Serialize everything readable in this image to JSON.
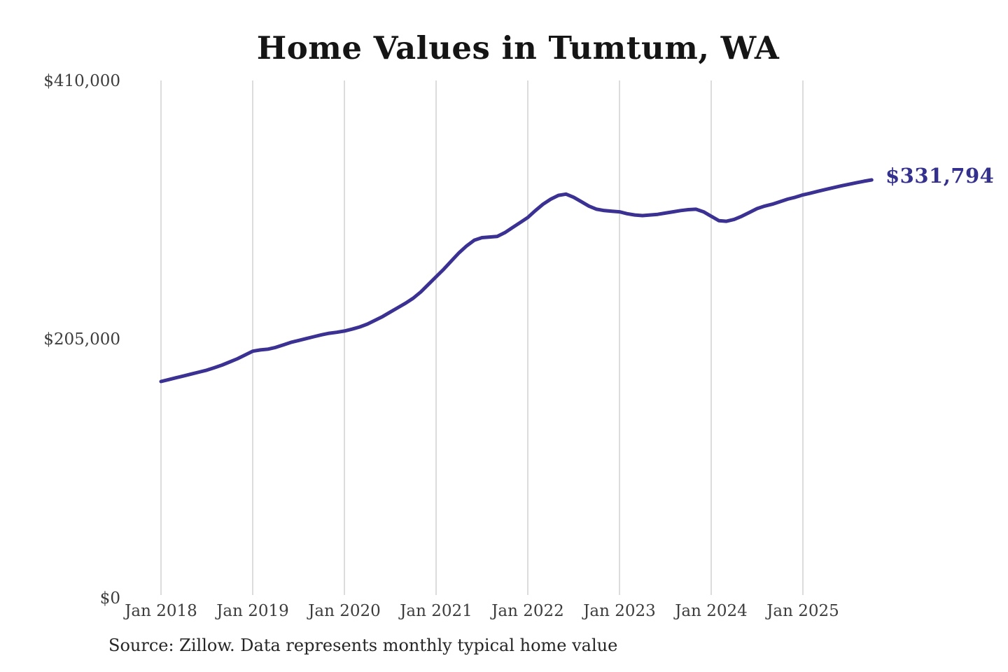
{
  "title": "Home Values in Tumtum, WA",
  "latest_value_label": "$331,794",
  "source_note": "Source: Zillow. Data represents monthly typical home value",
  "colors": {
    "line": "#3a3192",
    "latest_label": "#34308e",
    "gridline": "#c9c9c9",
    "axis_text": "#3d3d3d",
    "title_text": "#151515"
  },
  "chart_data": {
    "type": "line",
    "title": "Home Values in Tumtum, WA",
    "xlabel": "",
    "ylabel": "",
    "ylim": [
      0,
      410000
    ],
    "y_ticks": [
      410000,
      205000,
      0
    ],
    "y_tick_labels": [
      "$410,000",
      "$205,000",
      "$0"
    ],
    "x_tick_labels": [
      "Jan 2018",
      "Jan 2019",
      "Jan 2020",
      "Jan 2021",
      "Jan 2022",
      "Jan 2023",
      "Jan 2024",
      "Jan 2025"
    ],
    "grid": "vertical-only",
    "legend": "none",
    "annotation": {
      "text": "$331,794",
      "value": 331794,
      "position": "end-of-line"
    },
    "series": [
      {
        "name": "Monthly typical home value",
        "start": "2018-01",
        "interval": "monthly",
        "values": [
          172000,
          173500,
          175000,
          176500,
          178000,
          179500,
          181000,
          183000,
          185000,
          187500,
          190000,
          193000,
          196000,
          197000,
          197600,
          199000,
          201000,
          203000,
          204500,
          206000,
          207500,
          209000,
          210200,
          211000,
          212000,
          213500,
          215200,
          217500,
          220500,
          223500,
          227000,
          230500,
          234000,
          238000,
          243000,
          249000,
          255000,
          261000,
          267500,
          274000,
          279500,
          284000,
          286000,
          286500,
          287000,
          290000,
          294000,
          298000,
          302000,
          307500,
          312500,
          316500,
          319500,
          320500,
          318000,
          314500,
          311000,
          308500,
          307500,
          307000,
          306500,
          305000,
          304000,
          303500,
          304000,
          304500,
          305500,
          306500,
          307500,
          308200,
          308500,
          306500,
          303000,
          299500,
          299000,
          300500,
          303000,
          306000,
          309000,
          311000,
          312500,
          314500,
          316500,
          318000,
          319900,
          321300,
          322800,
          324200,
          325600,
          327000,
          328300,
          329500,
          330700,
          331794
        ]
      }
    ]
  }
}
